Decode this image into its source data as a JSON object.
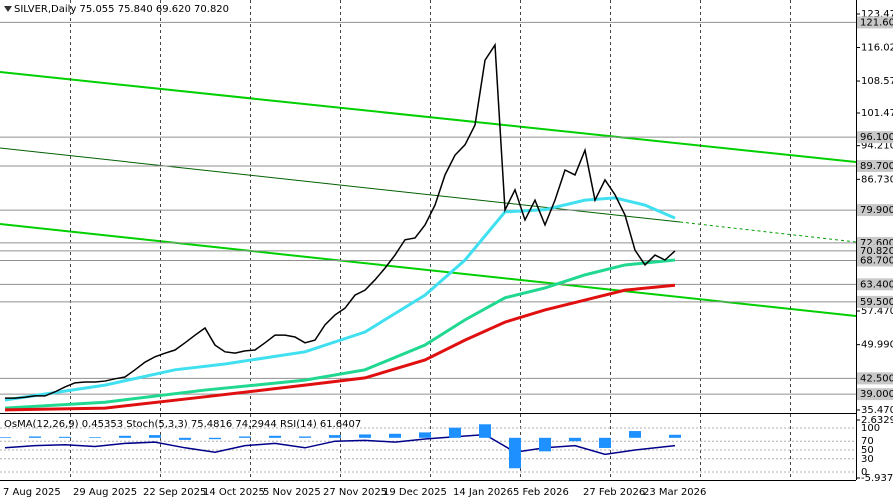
{
  "chart_data": [
    {
      "type": "line",
      "title": "SILVER,Daily  75.055 75.840 69.620 70.820",
      "categories": [
        null,
        null,
        "7 Aug 2025",
        null,
        null,
        null,
        null,
        null,
        null,
        "29 Aug 2025",
        null,
        null,
        null,
        null,
        null,
        null,
        "22 Sep 2025",
        null,
        null,
        null,
        null,
        null,
        "14 Oct 2025",
        null,
        null,
        null,
        null,
        null,
        "5 Nov 2025",
        null,
        null,
        null,
        null,
        null,
        "27 Nov 2025",
        null,
        null,
        null,
        null,
        null,
        "19 Dec 2025",
        null,
        null,
        null,
        null,
        null,
        null,
        "14 Jan 2026",
        null,
        null,
        null,
        null,
        null,
        "5 Feb 2026",
        null,
        null,
        null,
        null,
        null,
        null,
        "27 Feb 2026",
        null,
        null,
        null,
        null,
        null,
        "23 Mar 2026",
        null
      ],
      "series": [
        {
          "color": "#000000",
          "values": [
            38.1,
            38.1,
            38.3,
            38.6,
            38.6,
            39.5,
            40.6,
            41.5,
            41.7,
            41.7,
            41.9,
            42.4,
            42.8,
            44.4,
            46.1,
            47.3,
            48.1,
            48.8,
            50.4,
            52.1,
            53.7,
            49.9,
            48.4,
            48.1,
            48.6,
            48.8,
            50.4,
            52.1,
            52.1,
            51.7,
            50.4,
            51.0,
            54.4,
            56.6,
            58.1,
            61.0,
            62.1,
            64.4,
            67.0,
            69.9,
            73.3,
            73.7,
            76.6,
            81.0,
            87.7,
            92.1,
            94.4,
            98.8,
            113.2,
            116.6,
            79.9,
            84.4,
            77.7,
            82.1,
            76.6,
            82.1,
            88.8,
            87.7,
            93.2,
            82.1,
            86.6,
            83.3,
            78.8,
            71.0,
            67.7,
            69.9,
            68.8,
            70.82
          ]
        }
      ],
      "overlays": [
        {
          "color": "#40e0f0",
          "x": [
            0,
            10,
            17,
            22,
            30,
            36,
            42,
            46,
            50,
            54,
            58,
            61,
            64,
            67
          ],
          "values": [
            37.7,
            41.0,
            44.4,
            45.7,
            48.4,
            52.8,
            61.0,
            68.8,
            79.5,
            80.0,
            82.1,
            82.6,
            81.0,
            78.1
          ]
        },
        {
          "color": "#20d890",
          "x": [
            0,
            10,
            20,
            30,
            36,
            42,
            46,
            50,
            54,
            58,
            62,
            67
          ],
          "values": [
            35.9,
            37.2,
            39.9,
            42.1,
            44.4,
            49.9,
            55.5,
            60.4,
            62.6,
            65.5,
            67.7,
            68.8
          ]
        },
        {
          "color": "#e01010",
          "x": [
            0,
            10,
            20,
            30,
            36,
            42,
            46,
            50,
            54,
            58,
            62,
            67
          ],
          "values": [
            35.5,
            35.9,
            38.4,
            41.0,
            42.6,
            46.6,
            51.0,
            55.0,
            57.7,
            59.9,
            62.1,
            63.2
          ]
        }
      ],
      "levels": [
        {
          "value": 121.6,
          "label": "121.600"
        },
        {
          "value": 96.1,
          "label": "96.100"
        },
        {
          "value": 89.7,
          "label": "89.700"
        },
        {
          "value": 79.9,
          "label": "79.900"
        },
        {
          "value": 72.6,
          "label": "72.600"
        },
        {
          "value": 70.82,
          "label": "70.820"
        },
        {
          "value": 68.7,
          "label": "68.700"
        },
        {
          "value": 63.4,
          "label": "63.400"
        },
        {
          "value": 59.5,
          "label": "59.500"
        },
        {
          "value": 42.5,
          "label": "42.500"
        },
        {
          "value": 39.0,
          "label": "39.000"
        }
      ],
      "ylim": [
        35.47,
        123.47
      ],
      "yticks": [
        {
          "value": 123.47,
          "label": "123.470"
        },
        {
          "value": 116.02,
          "label": "116.020"
        },
        {
          "value": 108.57,
          "label": "108.570"
        },
        {
          "value": 101.47,
          "label": "101.470"
        },
        {
          "value": 94.21,
          "label": "94.210"
        },
        {
          "value": 86.73,
          "label": "86.730"
        },
        {
          "value": 57.47,
          "label": "57.470"
        },
        {
          "value": 49.99,
          "label": "49.990"
        },
        {
          "value": 35.47,
          "label": "35.470"
        }
      ]
    },
    {
      "type": "oscillator",
      "title": "OsMA(12,26,9) 0.45353 Stoch(5,3,3) 75.4816 74.2944 RSI(14) 61.6407",
      "x": [
        0,
        3,
        6,
        9,
        12,
        15,
        18,
        21,
        24,
        27,
        30,
        33,
        36,
        39,
        42,
        45,
        48,
        51,
        54,
        57,
        60,
        63,
        67
      ],
      "series": [
        {
          "color": "#00008b",
          "values": [
            55,
            60,
            62,
            58,
            65,
            68,
            55,
            45,
            60,
            65,
            55,
            70,
            72,
            68,
            75,
            80,
            85,
            45,
            55,
            60,
            40,
            50,
            60
          ]
        },
        {
          "color": "#1e90ff",
          "axis": "y2",
          "values": [
            0.1,
            0.2,
            0.15,
            0.1,
            0.3,
            0.4,
            -0.3,
            -0.2,
            0.2,
            0.3,
            0.2,
            0.4,
            0.5,
            0.6,
            0.8,
            1.5,
            2.0,
            -4.5,
            -2,
            -0.5,
            -1.5,
            1.0,
            0.45
          ]
        }
      ],
      "ylim": [
        0,
        100
      ],
      "yticks": [
        100,
        70,
        50,
        30,
        0
      ],
      "y2lim": [
        -5.9374,
        2.63295
      ],
      "y2ticks": [
        2.63295,
        -5.9374
      ]
    }
  ]
}
